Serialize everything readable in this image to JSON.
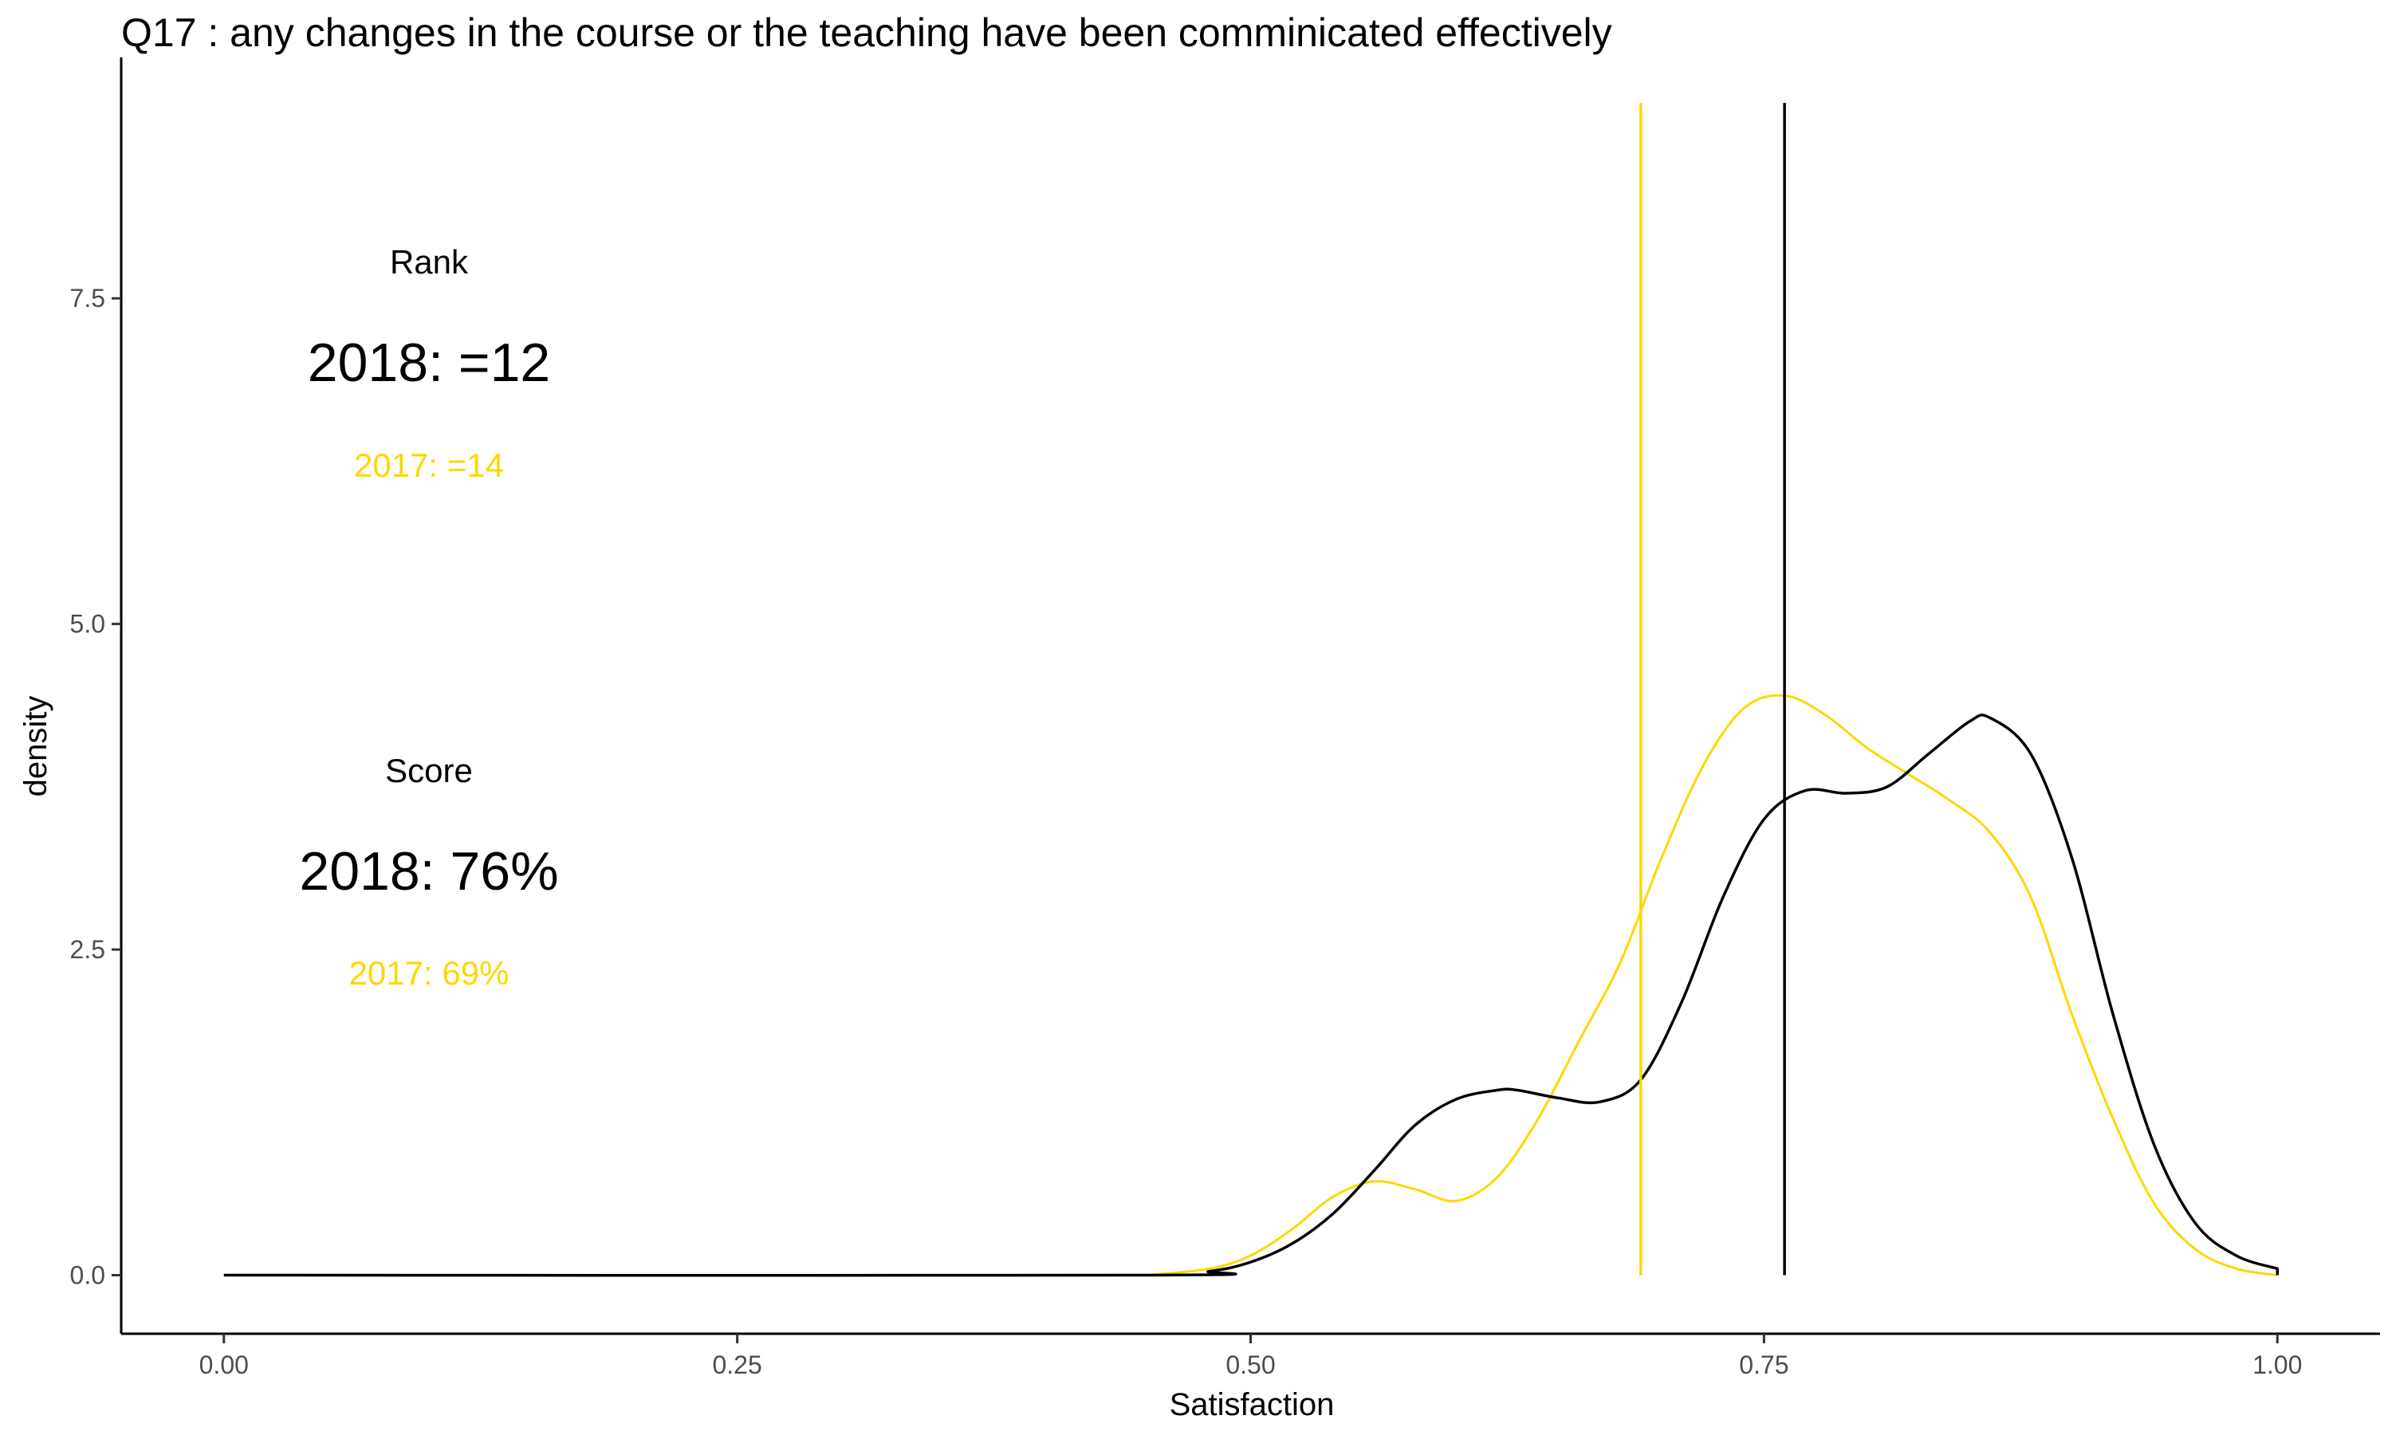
{
  "title": "Q17 :   any changes in the course or the teaching have been comminicated effectively",
  "colors": {
    "series_2018": "#000000",
    "series_2017": "#FFD700",
    "axis": "#000000",
    "tick_text": "#4d4d4d",
    "background": "#ffffff"
  },
  "annotations": {
    "rank_heading": "Rank",
    "rank_2018": "2018: =12",
    "rank_2017": "2017: =14",
    "score_heading": "Score",
    "score_2018": "2018: 76%",
    "score_2017": "2017: 69%"
  },
  "chart_data": {
    "type": "line",
    "title": "Q17 :   any changes in the course or the teaching have been comminicated effectively",
    "xlabel": "Satisfaction",
    "ylabel": "density",
    "xlim": [
      -0.05,
      1.05
    ],
    "ylim": [
      -0.45,
      9.35
    ],
    "x_ticks": [
      0.0,
      0.25,
      0.5,
      0.75,
      1.0
    ],
    "x_tick_labels": [
      "0.00",
      "0.25",
      "0.50",
      "0.75",
      "1.00"
    ],
    "y_ticks": [
      0.0,
      2.5,
      5.0,
      7.5
    ],
    "y_tick_labels": [
      "0.0",
      "2.5",
      "5.0",
      "7.5"
    ],
    "grid": false,
    "legend": "none",
    "series": [
      {
        "key": "2018",
        "color": "#000000",
        "x": [
          0.0,
          0.45,
          0.48,
          0.5,
          0.52,
          0.54,
          0.56,
          0.58,
          0.6,
          0.62,
          0.63,
          0.65,
          0.67,
          0.69,
          0.71,
          0.73,
          0.75,
          0.77,
          0.79,
          0.81,
          0.83,
          0.85,
          0.86,
          0.88,
          0.9,
          0.92,
          0.94,
          0.96,
          0.98,
          1.0
        ],
        "y": [
          0.0,
          0.0,
          0.03,
          0.1,
          0.24,
          0.47,
          0.8,
          1.15,
          1.35,
          1.42,
          1.42,
          1.36,
          1.33,
          1.5,
          2.1,
          2.9,
          3.5,
          3.72,
          3.7,
          3.75,
          4.0,
          4.25,
          4.28,
          4.0,
          3.2,
          2.0,
          1.0,
          0.4,
          0.15,
          0.05
        ]
      },
      {
        "key": "2017",
        "color": "#FFD700",
        "x": [
          0.45,
          0.48,
          0.5,
          0.52,
          0.54,
          0.56,
          0.58,
          0.6,
          0.62,
          0.64,
          0.66,
          0.68,
          0.7,
          0.72,
          0.74,
          0.76,
          0.78,
          0.8,
          0.82,
          0.84,
          0.86,
          0.88,
          0.9,
          0.92,
          0.94,
          0.96,
          0.98,
          1.0
        ],
        "y": [
          0.0,
          0.05,
          0.15,
          0.35,
          0.6,
          0.72,
          0.66,
          0.57,
          0.75,
          1.2,
          1.8,
          2.4,
          3.2,
          3.9,
          4.35,
          4.45,
          4.3,
          4.05,
          3.85,
          3.65,
          3.4,
          2.9,
          2.0,
          1.2,
          0.55,
          0.2,
          0.05,
          0.0
        ]
      }
    ],
    "vlines": [
      {
        "key": "2017",
        "x": 0.69,
        "color": "#FFD700"
      },
      {
        "key": "2018",
        "x": 0.76,
        "color": "#000000"
      }
    ]
  }
}
